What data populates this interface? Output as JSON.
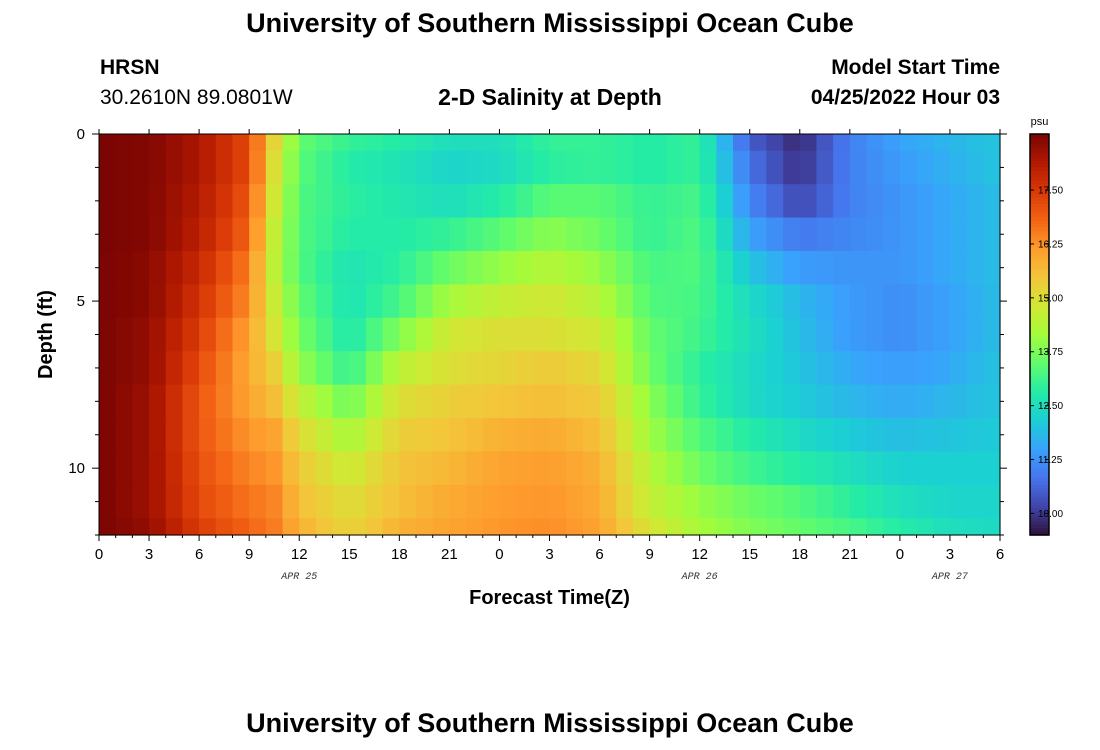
{
  "header": {
    "title": "University of Southern Mississippi Ocean Cube",
    "station": "HRSN",
    "coords": "30.2610N  89.0801W",
    "subtitle": "2-D Salinity at Depth",
    "model_start_label": "Model Start Time",
    "model_start_value": "04/25/2022 Hour 03"
  },
  "footer": {
    "title": "University of Southern Mississippi Ocean Cube"
  },
  "chart_data": {
    "type": "heatmap",
    "title": "2-D Salinity at Depth",
    "xlabel": "Forecast Time(Z)",
    "ylabel": "Depth (ft)",
    "x_range_hours": [
      0,
      54
    ],
    "y_range_ft": [
      0,
      12
    ],
    "y_inverted": true,
    "x_tick_values": [
      0,
      3,
      6,
      9,
      12,
      15,
      18,
      21,
      24,
      27,
      30,
      33,
      36,
      39,
      42,
      45,
      48,
      51,
      54
    ],
    "x_tick_labels": [
      "0",
      "3",
      "6",
      "9",
      "12",
      "15",
      "18",
      "21",
      "0",
      "3",
      "6",
      "9",
      "12",
      "15",
      "18",
      "21",
      "0",
      "3",
      "6"
    ],
    "date_labels": [
      {
        "text": "APR 25",
        "hour": 12
      },
      {
        "text": "APR 26",
        "hour": 36
      },
      {
        "text": "APR 27",
        "hour": 51
      }
    ],
    "y_ticks": [
      0,
      5,
      10
    ],
    "colorbar": {
      "unit": "psu",
      "min": 9.5,
      "max": 18.8,
      "ticks": [
        10.0,
        11.25,
        12.5,
        13.75,
        15.0,
        16.25,
        17.5
      ],
      "tick_labels": [
        "10.00",
        "11.25",
        "12.50",
        "13.75",
        "15.00",
        "16.25",
        "17.50"
      ],
      "colormap": [
        "#30123b",
        "#4145ab",
        "#4675ed",
        "#39a2fc",
        "#1bcfd4",
        "#24eca6",
        "#61fc6c",
        "#a4fc3b",
        "#d1e834",
        "#f3c63a",
        "#fe9b2d",
        "#f36315",
        "#d93806",
        "#b11901",
        "#7a0403"
      ]
    },
    "depth_levels_ft": [
      0,
      1,
      2,
      3,
      4,
      5,
      6,
      7,
      8,
      9,
      10,
      11,
      12
    ],
    "time_points_hours": [
      0,
      3,
      6,
      9,
      10.5,
      12,
      15,
      18,
      21,
      24,
      27,
      30,
      33,
      36,
      39,
      42,
      45,
      48,
      51,
      54
    ],
    "salinity_psu": [
      [
        18.8,
        18.7,
        18.2,
        17.2,
        15.2,
        13.5,
        13.0,
        12.8,
        12.5,
        12.5,
        13.0,
        13.0,
        12.8,
        13.0,
        10.5,
        9.8,
        11.0,
        11.5,
        11.8,
        12.0
      ],
      [
        18.8,
        18.7,
        18.2,
        17.2,
        15.0,
        13.4,
        12.8,
        12.6,
        12.3,
        12.4,
        12.9,
        13.0,
        12.8,
        13.0,
        10.8,
        9.9,
        11.0,
        11.4,
        11.7,
        12.0
      ],
      [
        18.8,
        18.7,
        18.1,
        17.0,
        14.8,
        13.3,
        12.9,
        12.7,
        12.5,
        12.8,
        13.4,
        13.4,
        13.0,
        13.2,
        11.1,
        10.2,
        11.0,
        11.3,
        11.6,
        11.9
      ],
      [
        18.8,
        18.7,
        18.0,
        16.8,
        14.6,
        13.3,
        12.8,
        12.8,
        13.0,
        13.4,
        13.9,
        13.6,
        13.0,
        13.3,
        11.5,
        10.9,
        11.1,
        11.3,
        11.6,
        11.9
      ],
      [
        18.8,
        18.6,
        17.8,
        16.5,
        14.5,
        13.3,
        12.6,
        12.9,
        13.6,
        14.0,
        14.4,
        14.0,
        13.2,
        13.3,
        12.0,
        11.4,
        11.3,
        11.3,
        11.6,
        11.9
      ],
      [
        18.8,
        18.6,
        17.6,
        16.3,
        14.7,
        13.5,
        12.6,
        13.2,
        14.2,
        14.6,
        14.8,
        14.4,
        13.3,
        13.2,
        12.4,
        11.8,
        11.4,
        11.2,
        11.5,
        11.9
      ],
      [
        18.8,
        18.5,
        17.4,
        16.0,
        14.9,
        13.7,
        12.7,
        13.8,
        14.8,
        15.0,
        15.0,
        14.8,
        13.5,
        13.1,
        12.5,
        11.9,
        11.4,
        11.2,
        11.5,
        11.9
      ],
      [
        18.8,
        18.5,
        17.2,
        15.9,
        15.3,
        14.0,
        13.0,
        14.5,
        15.0,
        15.2,
        15.4,
        15.1,
        13.6,
        12.9,
        12.4,
        12.0,
        11.6,
        11.4,
        11.6,
        12.0
      ],
      [
        18.8,
        18.4,
        17.0,
        16.0,
        15.6,
        14.6,
        13.6,
        15.0,
        15.3,
        15.5,
        15.6,
        15.4,
        13.9,
        13.0,
        12.4,
        12.1,
        11.8,
        11.6,
        11.8,
        12.0
      ],
      [
        18.8,
        18.4,
        17.0,
        16.2,
        16.0,
        15.1,
        14.2,
        15.3,
        15.5,
        15.8,
        15.9,
        15.6,
        14.1,
        13.3,
        12.8,
        12.4,
        12.1,
        11.9,
        12.0,
        12.1
      ],
      [
        18.8,
        18.4,
        17.1,
        16.4,
        16.2,
        15.4,
        14.7,
        15.5,
        15.7,
        16.0,
        16.1,
        15.8,
        14.4,
        13.6,
        13.1,
        12.8,
        12.5,
        12.2,
        12.2,
        12.2
      ],
      [
        18.8,
        18.4,
        17.2,
        16.6,
        16.4,
        15.6,
        15.0,
        15.6,
        15.9,
        16.1,
        16.2,
        15.9,
        14.6,
        14.0,
        13.6,
        13.3,
        12.9,
        12.5,
        12.3,
        12.3
      ],
      [
        18.8,
        18.5,
        17.4,
        16.8,
        16.5,
        15.8,
        15.2,
        15.8,
        16.0,
        16.2,
        16.3,
        16.0,
        14.9,
        14.2,
        13.8,
        13.5,
        13.2,
        12.8,
        12.5,
        12.4
      ]
    ]
  }
}
